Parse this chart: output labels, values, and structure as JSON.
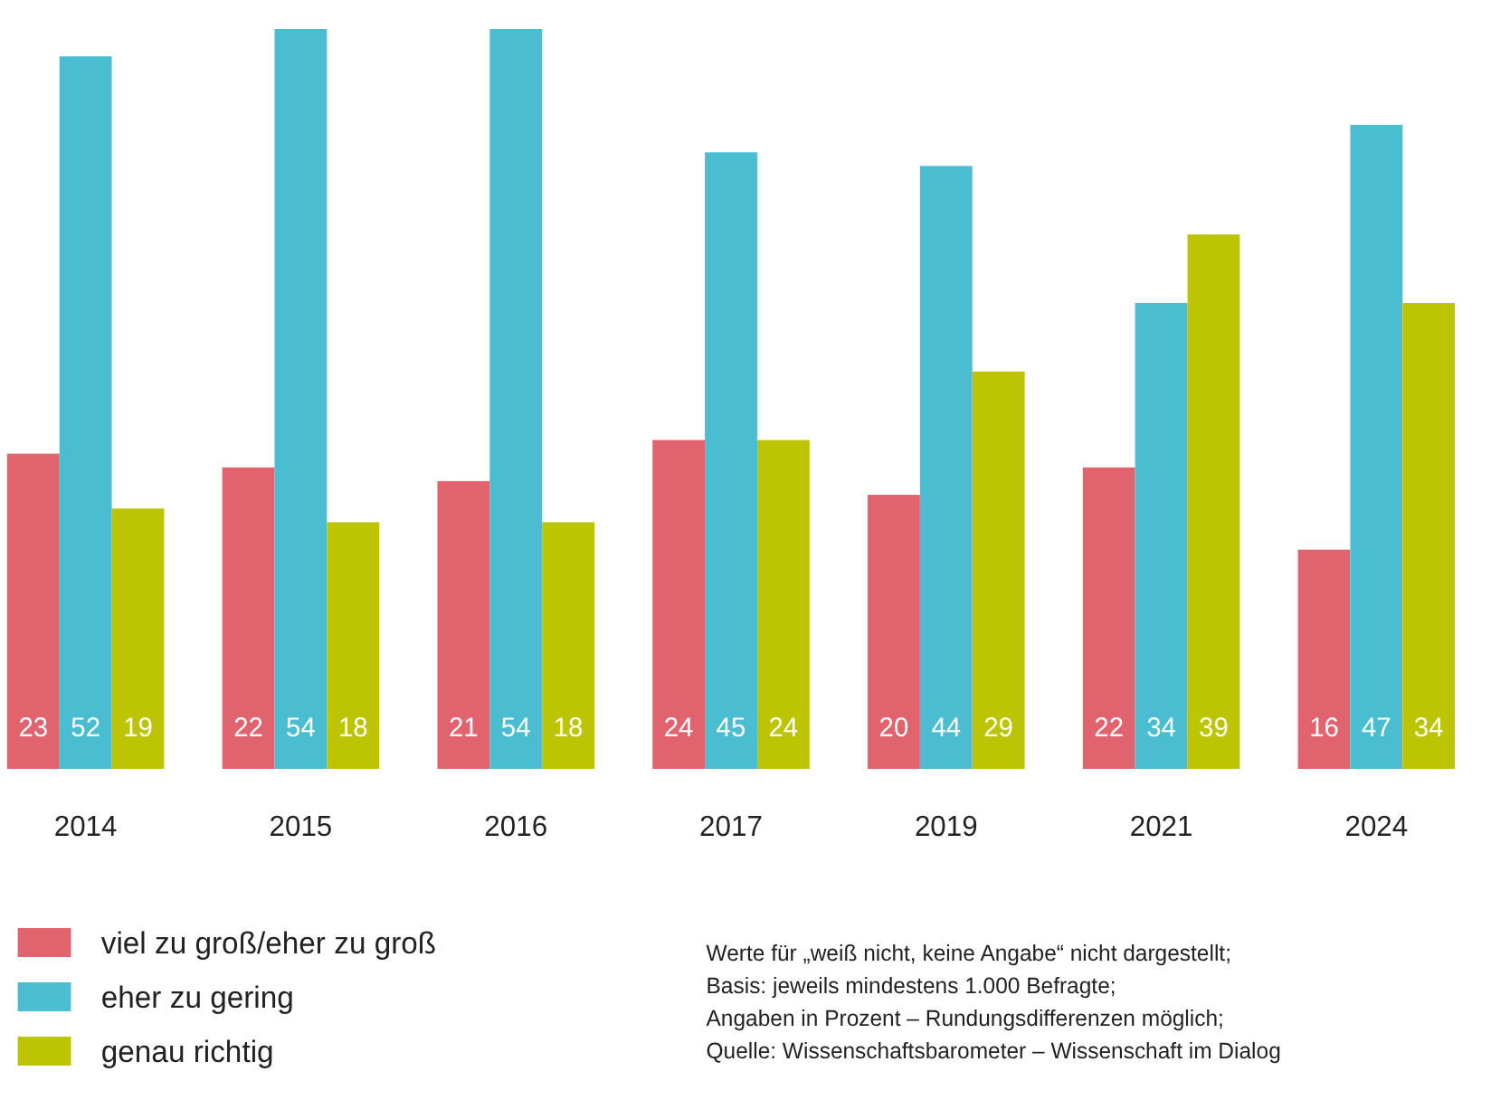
{
  "chart_data": {
    "type": "bar",
    "categories": [
      "2014",
      "2015",
      "2016",
      "2017",
      "2019",
      "2021",
      "2024"
    ],
    "series": [
      {
        "name": "viel zu groß/eher zu groß",
        "color": "#e0636e",
        "values": [
          23,
          22,
          21,
          24,
          20,
          22,
          16
        ]
      },
      {
        "name": "eher zu gering",
        "color": "#4bbdd0",
        "values": [
          52,
          54,
          54,
          45,
          44,
          34,
          47
        ]
      },
      {
        "name": "genau richtig",
        "color": "#bcc404",
        "values": [
          19,
          18,
          18,
          24,
          29,
          39,
          34
        ]
      }
    ],
    "data_labels": true,
    "legend": "bottom",
    "grid": false,
    "annotations": [
      "Werte für „weiß nicht, keine Angabe“ nicht dargestellt;",
      "Basis: jeweils mindestens 1.000 Befragte;",
      "Angaben in Prozent – Rundungsdifferenzen möglich;",
      "Quelle: Wissenschaftsbarometer – Wissenschaft im Dialog"
    ]
  }
}
